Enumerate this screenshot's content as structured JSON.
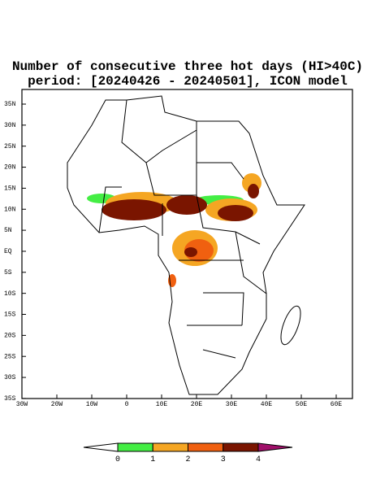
{
  "map": {
    "title": [
      "Number of consecutive three hot days (HI>40C)",
      "period: [20240426 - 20240501], ICON model"
    ],
    "lat_labels": [
      "35N",
      "30N",
      "25N",
      "20N",
      "15N",
      "10N",
      "5N",
      "EQ",
      "5S",
      "10S",
      "15S",
      "20S",
      "25S",
      "30S",
      "35S"
    ],
    "lon_labels": [
      "30W",
      "20W",
      "10W",
      "0",
      "10E",
      "20E",
      "30E",
      "40E",
      "50E",
      "60E"
    ],
    "colorbar": {
      "labels": [
        "0",
        "1",
        "2",
        "3",
        "4"
      ],
      "colors": [
        "#ffffff",
        "#44ee44",
        "#f5a623",
        "#f06010",
        "#7a1500",
        "#a0106a"
      ]
    }
  }
}
